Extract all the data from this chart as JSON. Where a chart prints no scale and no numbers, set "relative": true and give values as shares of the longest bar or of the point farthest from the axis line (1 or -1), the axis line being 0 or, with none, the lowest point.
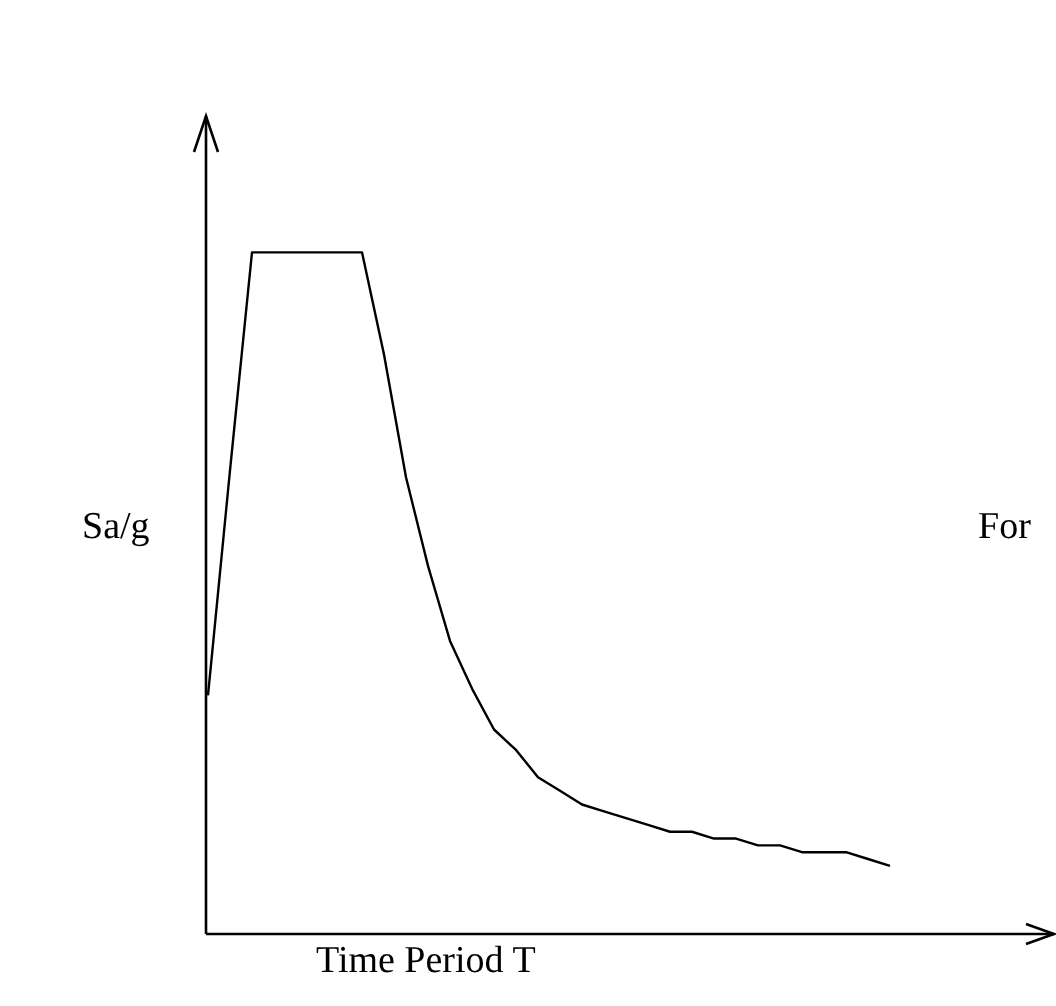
{
  "chart_data": {
    "type": "line",
    "relative": true,
    "xlabel": "Time Period T",
    "ylabel": "Sa/g",
    "annotations": [
      "For"
    ],
    "color": "#000000",
    "categories": [
      null,
      null,
      null,
      null,
      null,
      null,
      null,
      null,
      null,
      null,
      null,
      null,
      null,
      null,
      null,
      null,
      null,
      null,
      null,
      null,
      null,
      null,
      null,
      null,
      null,
      null,
      null,
      null,
      null,
      null,
      null,
      null,
      null,
      null,
      null,
      null,
      null,
      null,
      null
    ],
    "values": [
      0.35,
      0.68,
      1,
      1,
      1,
      1,
      1,
      1,
      0.85,
      0.67,
      0.54,
      0.43,
      0.36,
      0.3,
      0.27,
      0.23,
      0.21,
      0.19,
      0.18,
      0.17,
      0.16,
      0.15,
      0.15,
      0.14,
      0.14,
      0.13,
      0.13,
      0.12,
      0.12,
      0.12,
      0.11,
      0.1,
      null,
      null,
      null,
      null,
      null,
      null,
      null
    ]
  }
}
